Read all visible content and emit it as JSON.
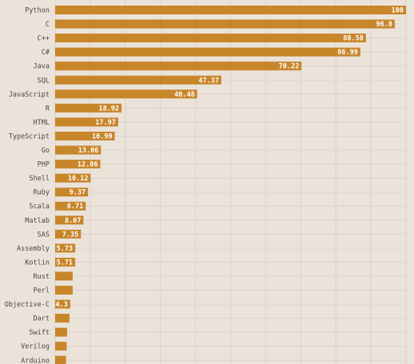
{
  "chart_data": {
    "type": "bar",
    "orientation": "horizontal",
    "title": "",
    "xlabel": "",
    "ylabel": "",
    "xlim": [
      0,
      100
    ],
    "grid": true,
    "bar_color": "#c8862a",
    "categories": [
      "Python",
      "C",
      "C++",
      "C#",
      "Java",
      "SQL",
      "JavaScript",
      "R",
      "HTML",
      "TypeScript",
      "Go",
      "PHP",
      "Shell",
      "Ruby",
      "Scala",
      "Matlab",
      "SAS",
      "Assembly",
      "Kotlin",
      "Rust",
      "Perl",
      "Objective-C",
      "Dart",
      "Swift",
      "Verilog",
      "Arduino"
    ],
    "values": [
      100,
      96.8,
      88.58,
      86.99,
      70.22,
      47.37,
      40.48,
      18.92,
      17.97,
      16.99,
      13.06,
      12.86,
      10.12,
      9.37,
      8.71,
      8.07,
      7.35,
      5.73,
      5.71,
      5.0,
      5.0,
      4.3,
      4.1,
      3.4,
      3.3,
      3.1
    ],
    "value_labels": [
      "100",
      "96.8",
      "88.58",
      "86.99",
      "70.22",
      "47.37",
      "40.48",
      "18.92",
      "17.97",
      "16.99",
      "13.06",
      "12.86",
      "10.12",
      "9.37",
      "8.71",
      "8.07",
      "7.35",
      "5.73",
      "5.71",
      "",
      "",
      "4.3",
      "",
      "",
      "",
      ""
    ]
  }
}
